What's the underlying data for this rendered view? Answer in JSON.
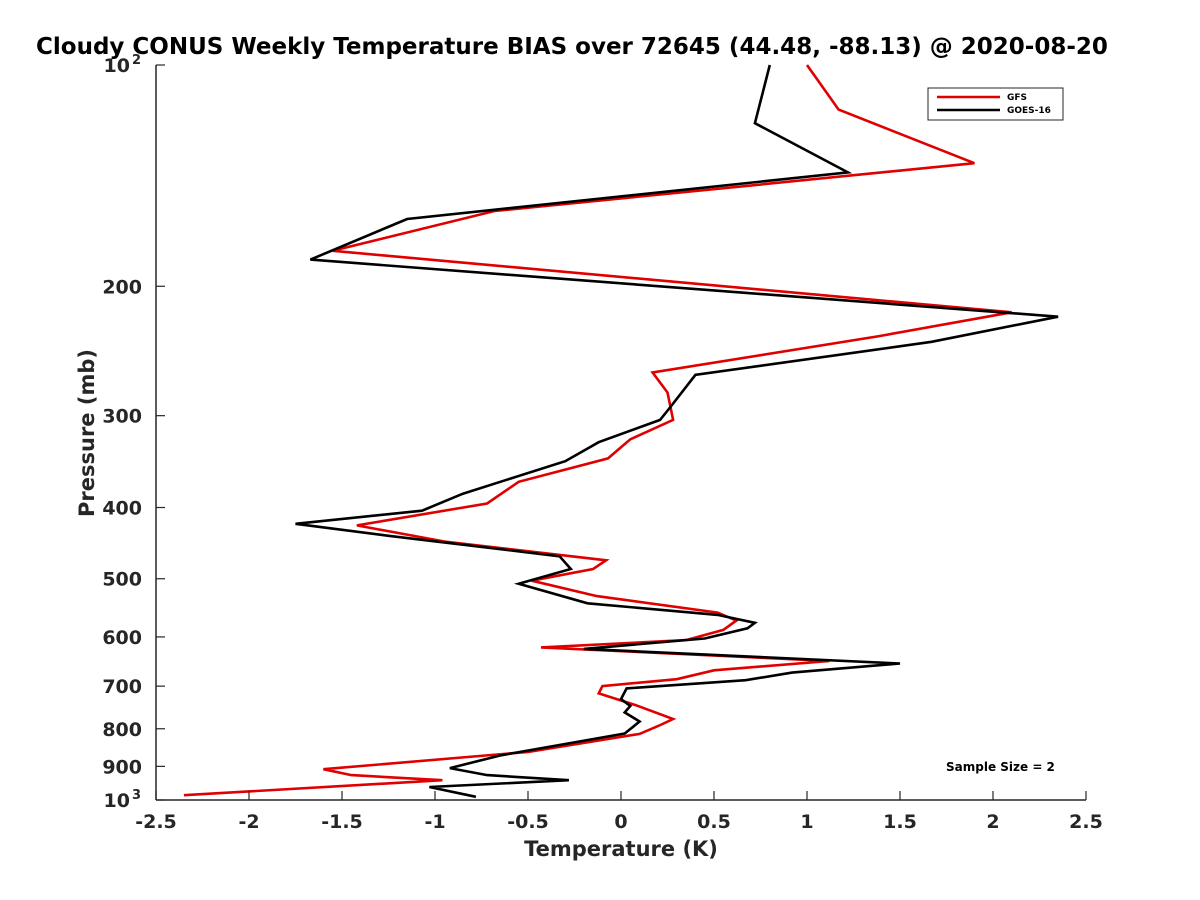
{
  "chart_data": {
    "type": "line",
    "title": "Cloudy CONUS Weekly Temperature BIAS over 72645 (44.48, -88.13) @ 2020-08-20",
    "xlabel": "Temperature (K)",
    "ylabel": "Pressure (mb)",
    "xlim": [
      -2.5,
      2.5
    ],
    "ylim": [
      100,
      1000
    ],
    "yscale": "log",
    "yreversed": true,
    "grid": false,
    "legend_position": "top-right",
    "annotation": "Sample Size = 2",
    "xticks": [
      {
        "value": -2.5,
        "label": "-2.5"
      },
      {
        "value": -2,
        "label": "-2"
      },
      {
        "value": -1.5,
        "label": "-1.5"
      },
      {
        "value": -1,
        "label": "-1"
      },
      {
        "value": -0.5,
        "label": "-0.5"
      },
      {
        "value": 0,
        "label": "0"
      },
      {
        "value": 0.5,
        "label": "0.5"
      },
      {
        "value": 1,
        "label": "1"
      },
      {
        "value": 1.5,
        "label": "1.5"
      },
      {
        "value": 2,
        "label": "2"
      },
      {
        "value": 2.5,
        "label": "2.5"
      }
    ],
    "yticks": [
      {
        "value": 100,
        "base": "10",
        "exp": "2"
      },
      {
        "value": 200,
        "label": "200"
      },
      {
        "value": 300,
        "label": "300"
      },
      {
        "value": 400,
        "label": "400"
      },
      {
        "value": 500,
        "label": "500"
      },
      {
        "value": 600,
        "label": "600"
      },
      {
        "value": 700,
        "label": "700"
      },
      {
        "value": 800,
        "label": "800"
      },
      {
        "value": 900,
        "label": "900"
      },
      {
        "value": 1000,
        "base": "10",
        "exp": "3"
      }
    ],
    "series": [
      {
        "name": "GFS",
        "color": "#e00000",
        "points": [
          [
            1.0,
            100
          ],
          [
            1.17,
            115
          ],
          [
            1.9,
            136
          ],
          [
            -0.68,
            158
          ],
          [
            -1.55,
            179
          ],
          [
            2.1,
            217
          ],
          [
            1.38,
            234
          ],
          [
            0.17,
            262
          ],
          [
            0.25,
            279
          ],
          [
            0.28,
            304
          ],
          [
            0.05,
            323
          ],
          [
            -0.07,
            343
          ],
          [
            -0.55,
            369
          ],
          [
            -0.72,
            395
          ],
          [
            -1.42,
            423
          ],
          [
            -0.95,
            445
          ],
          [
            -0.08,
            472
          ],
          [
            -0.15,
            485
          ],
          [
            -0.48,
            503
          ],
          [
            -0.13,
            528
          ],
          [
            0.52,
            556
          ],
          [
            0.62,
            570
          ],
          [
            0.55,
            587
          ],
          [
            0.35,
            606
          ],
          [
            -0.43,
            620
          ],
          [
            1.12,
            647
          ],
          [
            0.5,
            666
          ],
          [
            0.3,
            685
          ],
          [
            -0.1,
            700
          ],
          [
            -0.12,
            716
          ],
          [
            0.08,
            743
          ],
          [
            0.28,
            776
          ],
          [
            0.2,
            793
          ],
          [
            0.1,
            813
          ],
          [
            -0.5,
            860
          ],
          [
            -1.6,
            908
          ],
          [
            -1.45,
            925
          ],
          [
            -0.96,
            940
          ],
          [
            -2.35,
            985
          ]
        ]
      },
      {
        "name": "GOES-16",
        "color": "#000000",
        "points": [
          [
            0.8,
            100
          ],
          [
            0.72,
            120
          ],
          [
            1.22,
            140
          ],
          [
            -1.15,
            162
          ],
          [
            -1.67,
            184
          ],
          [
            2.35,
            220
          ],
          [
            1.67,
            238
          ],
          [
            0.4,
            264
          ],
          [
            0.27,
            291
          ],
          [
            0.21,
            304
          ],
          [
            -0.12,
            326
          ],
          [
            -0.3,
            346
          ],
          [
            -0.85,
            383
          ],
          [
            -1.07,
            404
          ],
          [
            -1.75,
            421
          ],
          [
            -1.25,
            437
          ],
          [
            -0.33,
            466
          ],
          [
            -0.27,
            485
          ],
          [
            -0.55,
            508
          ],
          [
            -0.18,
            540
          ],
          [
            0.52,
            560
          ],
          [
            0.72,
            574
          ],
          [
            0.68,
            584
          ],
          [
            0.45,
            603
          ],
          [
            -0.2,
            623
          ],
          [
            1.5,
            652
          ],
          [
            0.92,
            671
          ],
          [
            0.67,
            687
          ],
          [
            0.03,
            705
          ],
          [
            0.0,
            729
          ],
          [
            0.05,
            745
          ],
          [
            0.02,
            760
          ],
          [
            0.1,
            782
          ],
          [
            0.02,
            812
          ],
          [
            -0.65,
            870
          ],
          [
            -0.92,
            905
          ],
          [
            -0.72,
            925
          ],
          [
            -0.28,
            940
          ],
          [
            -1.03,
            960
          ],
          [
            -0.78,
            990
          ]
        ]
      }
    ]
  }
}
